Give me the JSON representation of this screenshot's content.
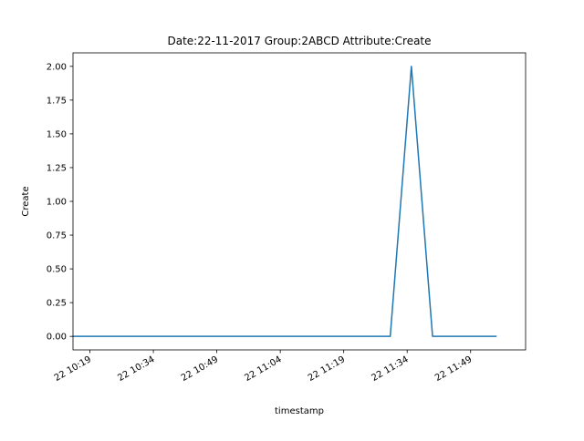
{
  "chart_data": {
    "type": "line",
    "title": "Date:22-11-2017  Group:2ABCD Attribute:Create",
    "xlabel": "timestamp",
    "ylabel": "Create",
    "x_ticks": [
      "22 10:19",
      "22 10:34",
      "22 10:49",
      "22 11:04",
      "22 11:19",
      "22 11:34",
      "22 11:49"
    ],
    "y_ticks": [
      "0.00",
      "0.25",
      "0.50",
      "0.75",
      "1.00",
      "1.25",
      "1.50",
      "1.75",
      "2.00"
    ],
    "xlim": [
      "2017-11-22 10:15",
      "2017-11-22 12:02"
    ],
    "ylim": [
      -0.1,
      2.1
    ],
    "grid": false,
    "series": [
      {
        "color": "#1f77b4",
        "x": [
          "2017-11-22 10:15",
          "2017-11-22 11:30",
          "2017-11-22 11:35",
          "2017-11-22 11:40",
          "2017-11-22 11:55"
        ],
        "values": [
          0,
          0,
          2,
          0,
          0
        ]
      }
    ]
  }
}
